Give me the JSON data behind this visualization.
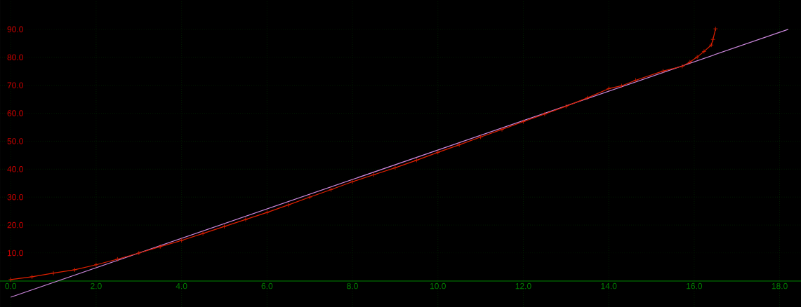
{
  "chart_data": {
    "type": "line",
    "xlim": [
      -0.25,
      18.5
    ],
    "ylim": [
      -9.3,
      100.5
    ],
    "xticks": [
      {
        "value": 0,
        "label": "0.0"
      },
      {
        "value": 2,
        "label": "2.0"
      },
      {
        "value": 4,
        "label": "4.0"
      },
      {
        "value": 6,
        "label": "6.0"
      },
      {
        "value": 8,
        "label": "8.0"
      },
      {
        "value": 10,
        "label": "10.0"
      },
      {
        "value": 12,
        "label": "12.0"
      },
      {
        "value": 14,
        "label": "14.0"
      },
      {
        "value": 16,
        "label": "16.0"
      },
      {
        "value": 18,
        "label": "18.0"
      }
    ],
    "yticks": [
      {
        "value": 10,
        "label": "10.0"
      },
      {
        "value": 20,
        "label": "20.0"
      },
      {
        "value": 30,
        "label": "30.0"
      },
      {
        "value": 40,
        "label": "40.0"
      },
      {
        "value": 50,
        "label": "50.0"
      },
      {
        "value": 60,
        "label": "60.0"
      },
      {
        "value": 70,
        "label": "70.0"
      },
      {
        "value": 80,
        "label": "80.0"
      },
      {
        "value": 90,
        "label": "90.0"
      }
    ],
    "grid": true,
    "series": [
      {
        "color": "#cc88dd",
        "marker": "none",
        "x": [
          0,
          18.2
        ],
        "values": [
          -5.8,
          90
        ]
      },
      {
        "color": "#e02000",
        "marker": "cross",
        "x": [
          0,
          0.5,
          1,
          1.5,
          2,
          2.5,
          3,
          3.5,
          4,
          4.5,
          5,
          5.5,
          6,
          6.5,
          7,
          7.5,
          8,
          8.5,
          9,
          9.5,
          10,
          10.5,
          11,
          11.5,
          12,
          12.5,
          13,
          13.5,
          14,
          14.3,
          14.63,
          15.27,
          15.72,
          15.9,
          16.07,
          16.23,
          16.4,
          16.44,
          16.5
        ],
        "values": [
          0.5,
          1.5,
          2.8,
          4.0,
          5.8,
          7.8,
          10.0,
          12.3,
          14.5,
          17.0,
          19.5,
          22.0,
          24.5,
          27.2,
          30.0,
          32.7,
          35.5,
          38.0,
          40.5,
          43.2,
          46.0,
          48.7,
          51.5,
          54.2,
          57.0,
          59.7,
          62.5,
          65.5,
          68.8,
          69.8,
          71.8,
          75.1,
          76.8,
          78.3,
          80.1,
          82.1,
          84.4,
          86.4,
          90.2
        ]
      }
    ]
  }
}
